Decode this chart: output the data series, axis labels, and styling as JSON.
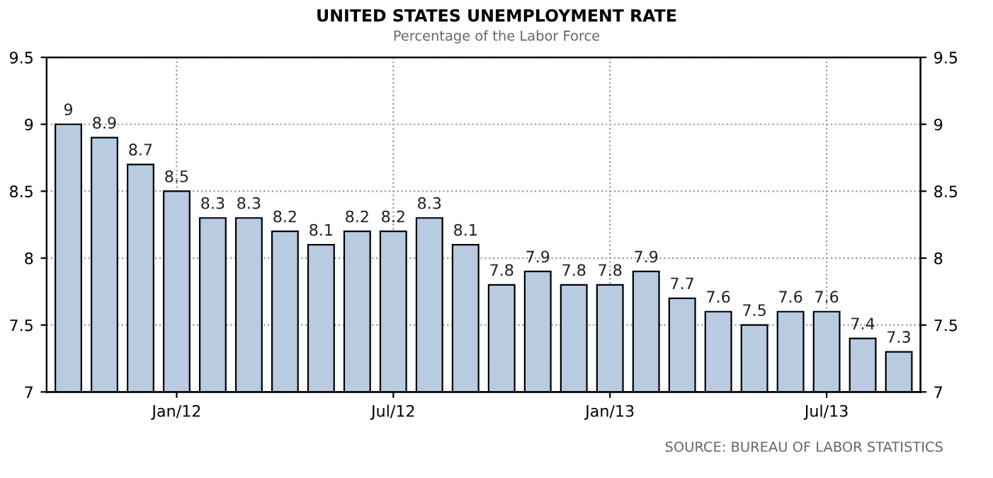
{
  "chart_data": {
    "type": "bar",
    "title": "UNITED STATES UNEMPLOYMENT RATE",
    "subtitle": "Percentage of the Labor Force",
    "categories": [
      null,
      null,
      null,
      "Jan/12",
      null,
      null,
      null,
      null,
      null,
      "Jul/12",
      null,
      null,
      null,
      null,
      null,
      "Jan/13",
      null,
      null,
      null,
      null,
      null,
      "Jul/13",
      null,
      null
    ],
    "values": [
      9,
      8.9,
      8.7,
      8.5,
      8.3,
      8.3,
      8.2,
      8.1,
      8.2,
      8.2,
      8.3,
      8.1,
      7.8,
      7.9,
      7.8,
      7.8,
      7.9,
      7.7,
      7.6,
      7.5,
      7.6,
      7.6,
      7.4,
      7.3
    ],
    "color": "#b9cbe0",
    "ylim": [
      7,
      9.5
    ],
    "yticks": [
      7,
      7.5,
      8,
      8.5,
      9,
      9.5
    ],
    "y2lim": [
      7,
      9.5
    ],
    "y2ticks": [
      7,
      7.5,
      8,
      8.5,
      9,
      9.5
    ],
    "grid": true,
    "data_labels": true,
    "annotations": [
      "SOURCE: BUREAU OF LABOR STATISTICS"
    ]
  }
}
